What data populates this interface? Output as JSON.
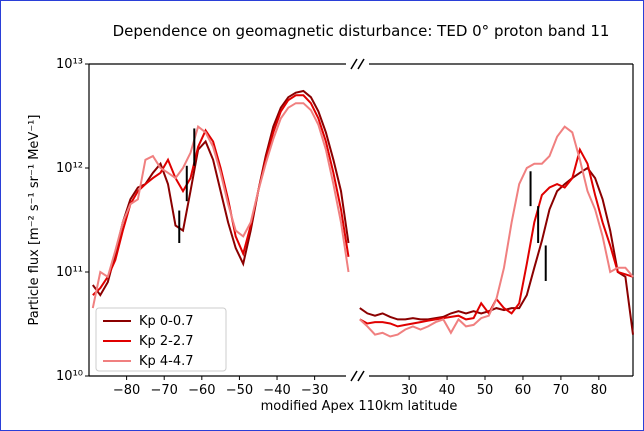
{
  "chart_data": [
    {
      "type": "line",
      "title": "Dependence on geomagnetic disturbance: TED 0° proton band 11",
      "x_label": "modified Apex 110km latitude",
      "y_label": "Particle flux [m⁻² s⁻¹ sr⁻¹ MeV⁻¹]",
      "log_y": true,
      "ylim": [
        10000000000.0,
        10000000000000.0
      ],
      "yticks": [
        {
          "value": 10000000000.0,
          "label": "10¹⁰"
        },
        {
          "value": 100000000000.0,
          "label": "10¹¹"
        },
        {
          "value": 1000000000000.0,
          "label": "10¹²"
        },
        {
          "value": 10000000000000.0,
          "label": "10¹³"
        }
      ],
      "legend": "lower left",
      "xlim": [
        -90,
        -19
      ],
      "xticks": [
        {
          "value": -80,
          "label": "−80"
        },
        {
          "value": -70,
          "label": "−70"
        },
        {
          "value": -60,
          "label": "−60"
        },
        {
          "value": -50,
          "label": "−50"
        },
        {
          "value": -40,
          "label": "−40"
        },
        {
          "value": -30,
          "label": "−30"
        }
      ],
      "x": [
        -89,
        -87,
        -85,
        -83,
        -81,
        -79,
        -77,
        -75,
        -73,
        -71,
        -69,
        -67,
        -65,
        -63,
        -61,
        -59,
        -57,
        -55,
        -53,
        -51,
        -49,
        -47,
        -45,
        -43,
        -41,
        -39,
        -37,
        -35,
        -33,
        -31,
        -29,
        -27,
        -25,
        -23,
        -21
      ],
      "series": [
        {
          "name": "Kp 0-0.7",
          "color": "#8b0000",
          "values": [
            75000000000.0,
            60000000000.0,
            80000000000.0,
            150000000000.0,
            300000000000.0,
            500000000000.0,
            650000000000.0,
            700000000000.0,
            900000000000.0,
            1100000000000.0,
            700000000000.0,
            280000000000.0,
            250000000000.0,
            600000000000.0,
            1500000000000.0,
            1800000000000.0,
            1200000000000.0,
            600000000000.0,
            300000000000.0,
            170000000000.0,
            120000000000.0,
            250000000000.0,
            600000000000.0,
            1300000000000.0,
            2500000000000.0,
            3800000000000.0,
            4800000000000.0,
            5300000000000.0,
            5500000000000.0,
            4800000000000.0,
            3500000000000.0,
            2200000000000.0,
            1200000000000.0,
            600000000000.0,
            190000000000.0
          ]
        },
        {
          "name": "Kp 2-2.7",
          "color": "#e00000",
          "values": [
            60000000000.0,
            70000000000.0,
            90000000000.0,
            130000000000.0,
            250000000000.0,
            450000000000.0,
            600000000000.0,
            700000000000.0,
            800000000000.0,
            900000000000.0,
            1200000000000.0,
            800000000000.0,
            600000000000.0,
            800000000000.0,
            1600000000000.0,
            2300000000000.0,
            1800000000000.0,
            1000000000000.0,
            500000000000.0,
            220000000000.0,
            150000000000.0,
            280000000000.0,
            600000000000.0,
            1200000000000.0,
            2200000000000.0,
            3500000000000.0,
            4500000000000.0,
            5000000000000.0,
            5000000000000.0,
            4200000000000.0,
            3000000000000.0,
            1800000000000.0,
            900000000000.0,
            400000000000.0,
            140000000000.0
          ]
        },
        {
          "name": "Kp 4-4.7",
          "color": "#f08080",
          "values": [
            45000000000.0,
            100000000000.0,
            90000000000.0,
            160000000000.0,
            300000000000.0,
            450000000000.0,
            500000000000.0,
            1200000000000.0,
            1300000000000.0,
            1000000000000.0,
            900000000000.0,
            800000000000.0,
            1000000000000.0,
            1400000000000.0,
            2500000000000.0,
            2200000000000.0,
            1600000000000.0,
            900000000000.0,
            450000000000.0,
            250000000000.0,
            220000000000.0,
            300000000000.0,
            600000000000.0,
            1100000000000.0,
            1900000000000.0,
            3000000000000.0,
            3800000000000.0,
            4200000000000.0,
            4200000000000.0,
            3600000000000.0,
            2600000000000.0,
            1500000000000.0,
            700000000000.0,
            300000000000.0,
            100000000000.0
          ]
        }
      ],
      "markers": [
        {
          "x": -66,
          "low": 190000000000.0,
          "high": 390000000000.0
        },
        {
          "x": -64,
          "low": 480000000000.0,
          "high": 1050000000000.0
        },
        {
          "x": -62,
          "low": 1050000000000.0,
          "high": 2400000000000.0
        }
      ]
    },
    {
      "type": "line",
      "xlim": [
        16,
        89
      ],
      "xticks": [
        30,
        40,
        50,
        60,
        70,
        80
      ],
      "x": [
        17,
        19,
        21,
        23,
        25,
        27,
        29,
        31,
        33,
        35,
        37,
        39,
        41,
        43,
        45,
        47,
        49,
        51,
        53,
        55,
        57,
        59,
        61,
        63,
        65,
        67,
        69,
        71,
        73,
        75,
        77,
        79,
        81,
        83,
        85,
        87,
        89
      ],
      "series": [
        {
          "color": "#8b0000",
          "values": [
            45000000000.0,
            40000000000.0,
            38000000000.0,
            40000000000.0,
            37000000000.0,
            35000000000.0,
            35000000000.0,
            36000000000.0,
            35000000000.0,
            35000000000.0,
            36000000000.0,
            37000000000.0,
            40000000000.0,
            42000000000.0,
            40000000000.0,
            42000000000.0,
            40000000000.0,
            42000000000.0,
            45000000000.0,
            43000000000.0,
            45000000000.0,
            45000000000.0,
            60000000000.0,
            110000000000.0,
            200000000000.0,
            400000000000.0,
            600000000000.0,
            700000000000.0,
            800000000000.0,
            900000000000.0,
            1000000000000.0,
            800000000000.0,
            500000000000.0,
            250000000000.0,
            100000000000.0,
            90000000000.0,
            25000000000.0
          ]
        },
        {
          "color": "#e00000",
          "values": [
            35000000000.0,
            32000000000.0,
            33000000000.0,
            33000000000.0,
            32000000000.0,
            30000000000.0,
            31000000000.0,
            32000000000.0,
            33000000000.0,
            34000000000.0,
            35000000000.0,
            36000000000.0,
            37000000000.0,
            38000000000.0,
            35000000000.0,
            36000000000.0,
            50000000000.0,
            40000000000.0,
            55000000000.0,
            45000000000.0,
            40000000000.0,
            50000000000.0,
            120000000000.0,
            300000000000.0,
            550000000000.0,
            650000000000.0,
            700000000000.0,
            650000000000.0,
            800000000000.0,
            1500000000000.0,
            1100000000000.0,
            550000000000.0,
            300000000000.0,
            180000000000.0,
            100000000000.0,
            95000000000.0,
            90000000000.0
          ]
        },
        {
          "color": "#f08080",
          "values": [
            35000000000.0,
            30000000000.0,
            25000000000.0,
            26000000000.0,
            24000000000.0,
            25000000000.0,
            28000000000.0,
            30000000000.0,
            28000000000.0,
            30000000000.0,
            33000000000.0,
            35000000000.0,
            26000000000.0,
            35000000000.0,
            30000000000.0,
            31000000000.0,
            36000000000.0,
            38000000000.0,
            55000000000.0,
            110000000000.0,
            300000000000.0,
            700000000000.0,
            1000000000000.0,
            1100000000000.0,
            1100000000000.0,
            1300000000000.0,
            2000000000000.0,
            2500000000000.0,
            2200000000000.0,
            1200000000000.0,
            600000000000.0,
            400000000000.0,
            220000000000.0,
            100000000000.0,
            110000000000.0,
            110000000000.0,
            90000000000.0
          ]
        }
      ],
      "markers": [
        {
          "x": 62,
          "low": 430000000000.0,
          "high": 930000000000.0
        },
        {
          "x": 64,
          "low": 190000000000.0,
          "high": 430000000000.0
        },
        {
          "x": 66,
          "low": 82000000000.0,
          "high": 180000000000.0
        }
      ]
    }
  ]
}
